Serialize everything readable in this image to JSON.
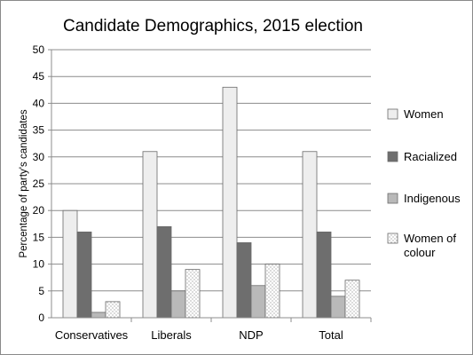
{
  "chart_data": {
    "type": "bar",
    "title": "Candidate Demographics, 2015 election",
    "xlabel": "",
    "ylabel": "Percentage of party's candidates",
    "ylim": [
      0,
      50
    ],
    "yticks": [
      0,
      5,
      10,
      15,
      20,
      25,
      30,
      35,
      40,
      45,
      50
    ],
    "grid": true,
    "legend_position": "right",
    "categories": [
      "Conservatives",
      "Liberals",
      "NDP",
      "Total"
    ],
    "series": [
      {
        "name": "Women",
        "values": [
          20,
          31,
          43,
          31
        ],
        "fill": "#eeeeee",
        "pattern": "solid"
      },
      {
        "name": "Racialized",
        "values": [
          16,
          17,
          14,
          16
        ],
        "fill": "#6e6e6e",
        "pattern": "solid"
      },
      {
        "name": "Indigenous",
        "values": [
          1,
          5,
          6,
          4
        ],
        "fill": "#b9b9b9",
        "pattern": "solid"
      },
      {
        "name": "Women of colour",
        "values": [
          3,
          9,
          10,
          7
        ],
        "fill": "#ffffff",
        "pattern": "dotted"
      }
    ]
  }
}
